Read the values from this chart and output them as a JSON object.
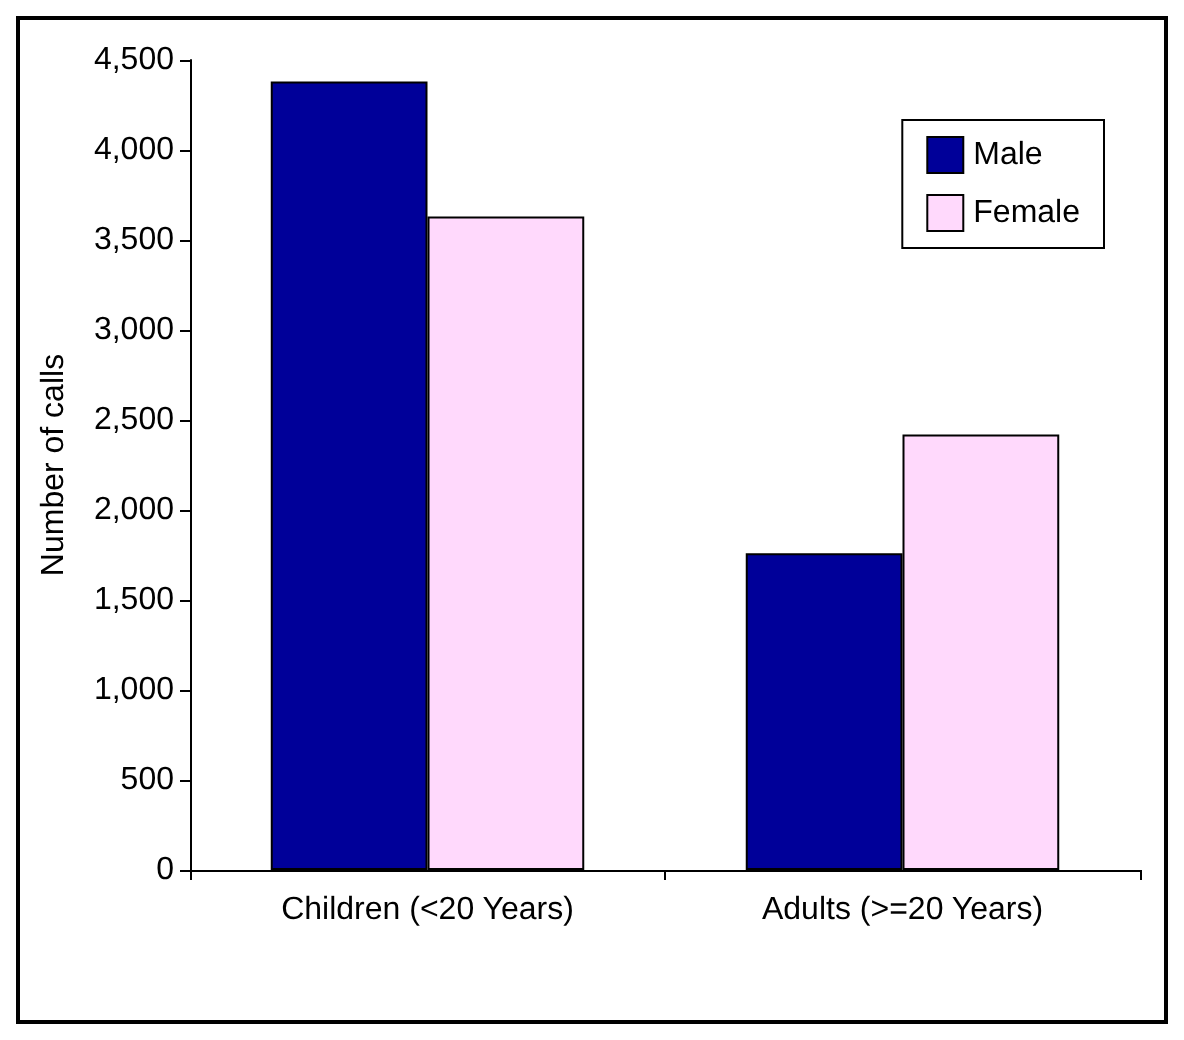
{
  "chart_data": {
    "type": "bar",
    "ylabel": "Number of calls",
    "categories": [
      "Children (<20 Years)",
      "Adults (>=20 Years)"
    ],
    "series": [
      {
        "name": "Male",
        "color": "#000099",
        "values": [
          4380,
          1760
        ]
      },
      {
        "name": "Female",
        "color": "#ffd9fc",
        "values": [
          3630,
          2420
        ]
      }
    ],
    "ylim": [
      0,
      4500
    ],
    "yticks": [
      0,
      500,
      {
        "value": 1000,
        "label": "1,000"
      },
      {
        "value": 1500,
        "label": "1,500"
      },
      {
        "value": 2000,
        "label": "2,000"
      },
      {
        "value": 2500,
        "label": "2,500"
      },
      {
        "value": 3000,
        "label": "3,000"
      },
      {
        "value": 3500,
        "label": "3,500"
      },
      {
        "value": 4000,
        "label": "4,000"
      },
      {
        "value": 4500,
        "label": "4,500"
      }
    ],
    "grid": false,
    "legend": "top right"
  }
}
